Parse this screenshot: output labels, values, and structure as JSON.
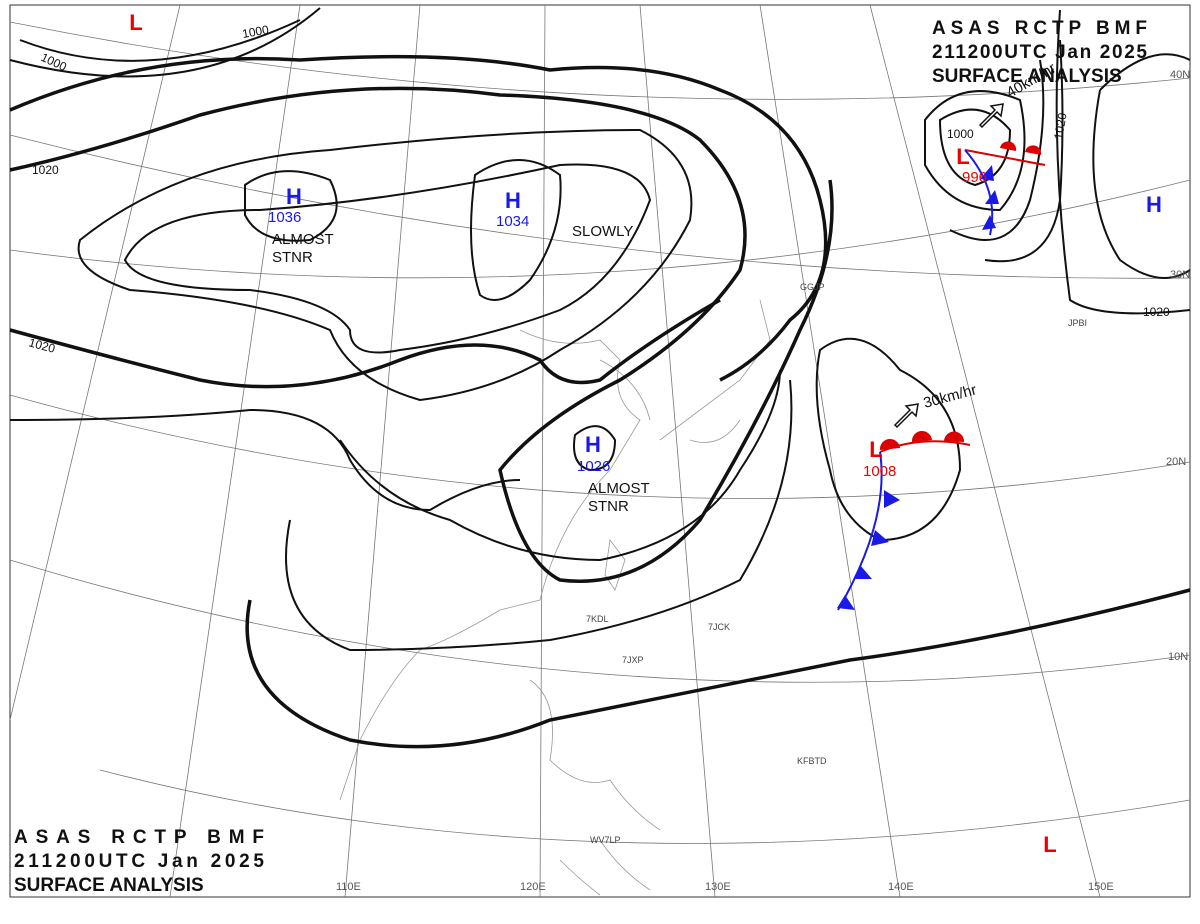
{
  "header": {
    "lines": [
      "ASAS RCTP BMF",
      "211200UTC Jan 2025",
      "SURFACE ANALYSIS"
    ]
  },
  "footer": {
    "lines": [
      "ASAS RCTP BMF",
      "211200UTC Jan 2025",
      "SURFACE ANALYSIS"
    ]
  },
  "pressure_centers": [
    {
      "symbol": "H",
      "value": "1036",
      "note": [
        "ALMOST",
        "STNR"
      ]
    },
    {
      "symbol": "H",
      "value": "1034",
      "note": [
        "SLOWLY"
      ]
    },
    {
      "symbol": "H",
      "value": "1026",
      "note": [
        "ALMOST",
        "STNR"
      ]
    },
    {
      "symbol": "L",
      "value": "996",
      "note": [
        "40km/hr"
      ]
    },
    {
      "symbol": "L",
      "value": "1008",
      "note": [
        "30km/hr"
      ]
    },
    {
      "symbol": "H"
    },
    {
      "symbol": "L"
    },
    {
      "symbol": "L"
    }
  ],
  "isobar_labels": [
    "1000",
    "1000",
    "1000",
    "1020",
    "1020",
    "1020",
    "1020"
  ],
  "latitude_labels": [
    "40N",
    "30N",
    "20N",
    "10N"
  ],
  "longitude_labels": [
    "110E",
    "120E",
    "130E",
    "140E",
    "150E"
  ],
  "station_ids": [
    "GGJP",
    "JPBI",
    "KFBTD",
    "7JCK",
    "7JXP",
    "7KDL",
    "WV7LP"
  ]
}
